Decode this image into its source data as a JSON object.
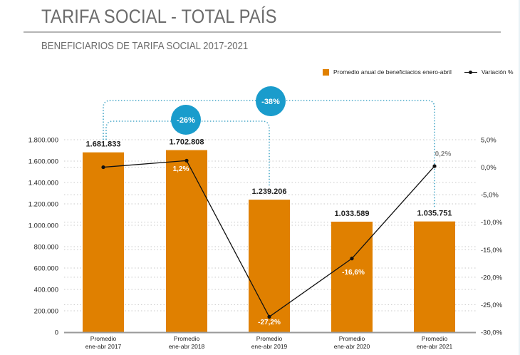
{
  "header": {
    "title": "TARIFA SOCIAL - TOTAL PAÍS",
    "subtitle": "BENEFICIARIOS DE TARIFA SOCIAL 2017-2021"
  },
  "colors": {
    "bar": "#e08000",
    "line": "#111111",
    "bubble": "#1a9ccc",
    "bracket": "#4aa8c8",
    "grid": "#c8c8c8",
    "axis": "#9a9a9a",
    "text": "#222222"
  },
  "chart_data": {
    "type": "bar",
    "title": "TARIFA SOCIAL - TOTAL PAÍS",
    "subtitle": "BENEFICIARIOS DE TARIFA SOCIAL 2017-2021",
    "categories": [
      "Promedio\nene-abr 2017",
      "Promedio\nene-abr 2018",
      "Promedio\nene-abr 2019",
      "Promedio\nene-abr 2020",
      "Promedio\nene-abr 2021"
    ],
    "category_lines": [
      [
        "Promedio",
        "ene-abr 2017"
      ],
      [
        "Promedio",
        "ene-abr 2018"
      ],
      [
        "Promedio",
        "ene-abr 2019"
      ],
      [
        "Promedio",
        "ene-abr 2020"
      ],
      [
        "Promedio",
        "ene-abr 2021"
      ]
    ],
    "series": [
      {
        "name": "Promedio anual de beneficiacios enero-abril",
        "type": "bar",
        "axis": "left",
        "values": [
          1681833,
          1702808,
          1239206,
          1033589,
          1035751
        ],
        "labels": [
          "1.681.833",
          "1.702.808",
          "1.239.206",
          "1.033.589",
          "1.035.751"
        ]
      },
      {
        "name": "Variación %",
        "type": "line",
        "axis": "right",
        "values": [
          0.0,
          1.2,
          -27.2,
          -16.6,
          0.2
        ],
        "labels": [
          "",
          "1,2%",
          "-27,2%",
          "-16,6%",
          "0,2%"
        ]
      }
    ],
    "ylim_left": [
      0,
      1800000
    ],
    "yticks_left": [
      "0",
      "200.000",
      "400.000",
      "600.000",
      "800.000",
      "1.000.000",
      "1.200.000",
      "1.400.000",
      "1.600.000",
      "1.800.000"
    ],
    "yticks_left_values": [
      0,
      200000,
      400000,
      600000,
      800000,
      1000000,
      1200000,
      1400000,
      1600000,
      1800000
    ],
    "ylim_right": [
      -30,
      5
    ],
    "yticks_right": [
      "-30,0%",
      "-25,0%",
      "-20,0%",
      "-15,0%",
      "-10,0%",
      "-5,0%",
      "0,0%",
      "5,0%"
    ],
    "yticks_right_values": [
      -30,
      -25,
      -20,
      -15,
      -10,
      -5,
      0,
      5
    ],
    "grid": true,
    "legend_position": "top-right",
    "annotations": [
      {
        "label": "-26%",
        "from_category": 0,
        "to_category": 2
      },
      {
        "label": "-38%",
        "from_category": 0,
        "to_category": 4
      }
    ]
  }
}
